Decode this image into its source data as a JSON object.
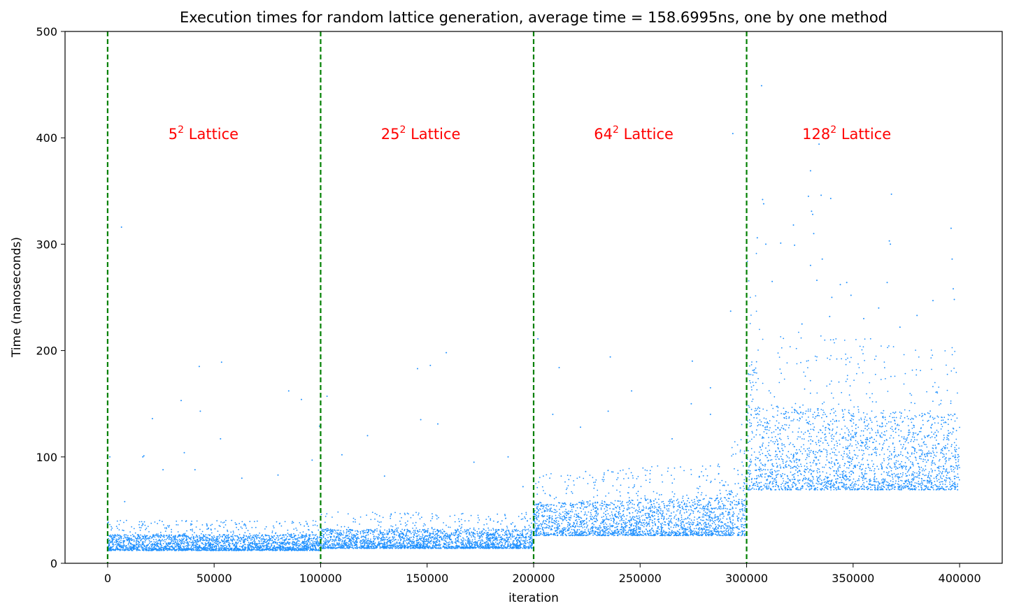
{
  "chart_data": {
    "type": "scatter",
    "title": "Execution times for random lattice generation, average time = 158.6995ns, one by one method",
    "xlabel": "iteration",
    "ylabel": "Time (nanoseconds)",
    "xlim": [
      -20000,
      420000
    ],
    "ylim": [
      0,
      500
    ],
    "xticks": [
      0,
      50000,
      100000,
      150000,
      200000,
      250000,
      300000,
      350000,
      400000
    ],
    "xtick_labels": [
      "0",
      "50000",
      "100000",
      "150000",
      "200000",
      "250000",
      "300000",
      "350000",
      "400000"
    ],
    "yticks": [
      0,
      100,
      200,
      300,
      400,
      500
    ],
    "ytick_labels": [
      "0",
      "100",
      "200",
      "300",
      "400",
      "500"
    ],
    "point_color": "#1e90ff",
    "grid": false,
    "legend": "none",
    "vlines": {
      "x": [
        0,
        100000,
        200000,
        300000
      ],
      "color": "#008000",
      "style": "dashed"
    },
    "annotations": [
      {
        "base": "5",
        "sup": "2",
        "rest": " Lattice",
        "x": 45000,
        "y": 400,
        "color": "#ff0000"
      },
      {
        "base": "25",
        "sup": "2",
        "rest": " Lattice",
        "x": 147000,
        "y": 400,
        "color": "#ff0000"
      },
      {
        "base": "64",
        "sup": "2",
        "rest": " Lattice",
        "x": 247000,
        "y": 400,
        "color": "#ff0000"
      },
      {
        "base": "128",
        "sup": "2",
        "rest": " Lattice",
        "x": 347000,
        "y": 400,
        "color": "#ff0000"
      }
    ],
    "series": [
      {
        "segment": "5^2",
        "x_range": [
          0,
          100000
        ],
        "floor": 12,
        "band_upper": 27,
        "outliers": [
          [
            1000,
            100
          ],
          [
            6500,
            316
          ],
          [
            8000,
            58
          ],
          [
            21000,
            136
          ],
          [
            16500,
            100
          ],
          [
            34500,
            153
          ],
          [
            36000,
            104
          ],
          [
            43000,
            185
          ],
          [
            43500,
            143
          ],
          [
            41000,
            88
          ],
          [
            53500,
            189
          ],
          [
            53000,
            117
          ],
          [
            63000,
            80
          ],
          [
            85000,
            162
          ],
          [
            91000,
            154
          ],
          [
            80000,
            83
          ],
          [
            96000,
            97
          ],
          [
            99500,
            129
          ],
          [
            17000,
            101
          ],
          [
            26000,
            88
          ]
        ]
      },
      {
        "segment": "25^2",
        "x_range": [
          100000,
          200000
        ],
        "floor": 14,
        "band_upper": 32,
        "outliers": [
          [
            103000,
            157
          ],
          [
            122000,
            120
          ],
          [
            145500,
            183
          ],
          [
            147000,
            135
          ],
          [
            151500,
            186
          ],
          [
            155000,
            131
          ],
          [
            159000,
            198
          ],
          [
            110000,
            102
          ],
          [
            130000,
            82
          ],
          [
            172000,
            95
          ],
          [
            188000,
            100
          ],
          [
            195000,
            72
          ]
        ]
      },
      {
        "segment": "64^2",
        "x_range": [
          200000,
          300000
        ],
        "floor": 26,
        "band_upper": 56,
        "outliers": [
          [
            202000,
            211
          ],
          [
            212000,
            184
          ],
          [
            236000,
            194
          ],
          [
            274500,
            190
          ],
          [
            246000,
            162
          ],
          [
            283000,
            165
          ],
          [
            292500,
            237
          ],
          [
            293500,
            404
          ],
          [
            209000,
            140
          ],
          [
            235000,
            143
          ],
          [
            265000,
            117
          ],
          [
            222000,
            128
          ],
          [
            274000,
            150
          ],
          [
            283000,
            140
          ]
        ]
      },
      {
        "segment": "128^2",
        "x_range": [
          300000,
          400000
        ],
        "floor": 69,
        "band_upper": 150,
        "outliers": [
          [
            305000,
            306
          ],
          [
            307000,
            449
          ],
          [
            307500,
            342
          ],
          [
            308000,
            338
          ],
          [
            309000,
            300
          ],
          [
            316000,
            301
          ],
          [
            322000,
            318
          ],
          [
            322500,
            299
          ],
          [
            329000,
            345
          ],
          [
            330000,
            369
          ],
          [
            330500,
            331
          ],
          [
            331000,
            328
          ],
          [
            331500,
            310
          ],
          [
            330000,
            280
          ],
          [
            334000,
            394
          ],
          [
            335000,
            346
          ],
          [
            335500,
            286
          ],
          [
            339000,
            232
          ],
          [
            339500,
            343
          ],
          [
            344000,
            262
          ],
          [
            347000,
            264
          ],
          [
            362000,
            240
          ],
          [
            366000,
            264
          ],
          [
            367000,
            303
          ],
          [
            367500,
            300
          ],
          [
            368000,
            347
          ],
          [
            372000,
            222
          ],
          [
            380000,
            233
          ],
          [
            387500,
            247
          ],
          [
            396000,
            315
          ],
          [
            396500,
            286
          ],
          [
            397000,
            258
          ],
          [
            397500,
            248
          ],
          [
            340000,
            250
          ],
          [
            355000,
            230
          ],
          [
            312000,
            265
          ],
          [
            333000,
            266
          ],
          [
            326000,
            225
          ],
          [
            349000,
            252
          ]
        ]
      }
    ]
  }
}
